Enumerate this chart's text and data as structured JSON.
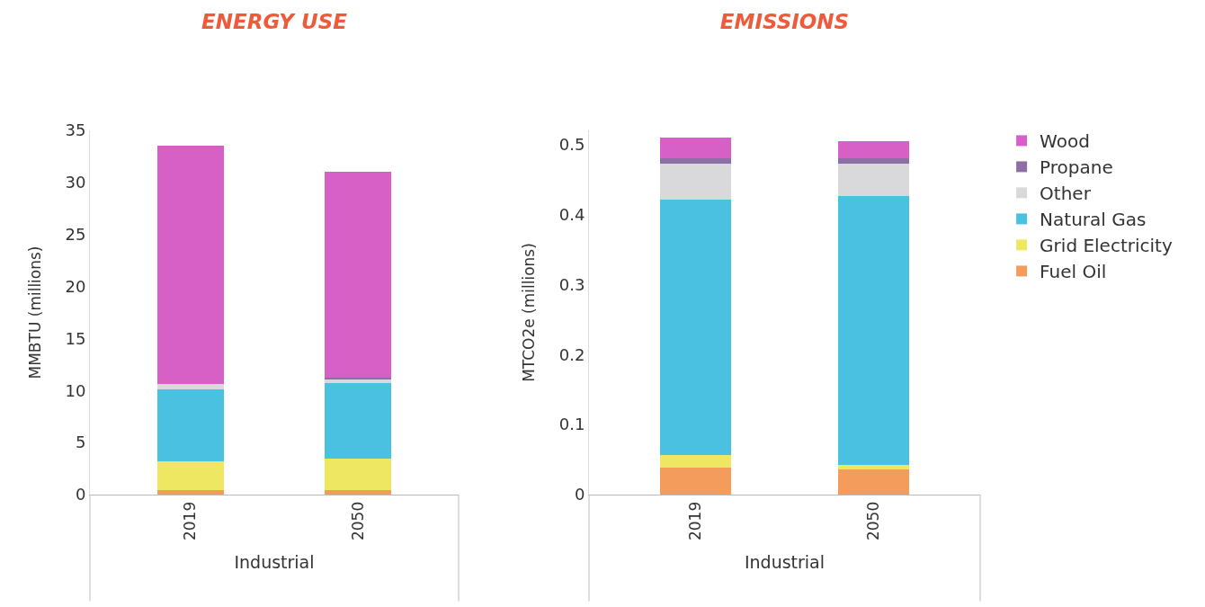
{
  "chart_data": [
    {
      "type": "bar",
      "title": "ENERGY USE",
      "xlabel": "Industrial",
      "ylabel": "MMBTU (millions)",
      "categories": [
        "2019",
        "2050"
      ],
      "stacked": true,
      "grid": false,
      "legend": false,
      "ylim": [
        0,
        35
      ],
      "yticks": [
        0,
        5,
        10,
        15,
        20,
        25,
        30,
        35
      ],
      "series": [
        {
          "color": "#f49c5c",
          "values": [
            0.4,
            0.4
          ]
        },
        {
          "color": "#ede762",
          "values": [
            2.8,
            3.1
          ]
        },
        {
          "color": "#4bc1e1",
          "values": [
            6.9,
            7.2
          ]
        },
        {
          "color": "#d9d9dc",
          "values": [
            0.5,
            0.4
          ]
        },
        {
          "color": "#8e6fa5",
          "values": [
            0,
            0.1
          ]
        },
        {
          "color": "#d660c6",
          "values": [
            22.9,
            19.8
          ]
        }
      ]
    },
    {
      "type": "bar",
      "title": "EMISSIONS",
      "xlabel": "Industrial",
      "ylabel": "MTCO2e (millions)",
      "categories": [
        "2019",
        "2050"
      ],
      "stacked": true,
      "grid": false,
      "legend": "right",
      "ylim": [
        0,
        0.52
      ],
      "yticks": [
        0,
        0.1,
        0.2,
        0.3,
        0.4,
        0.5
      ],
      "series": [
        {
          "name": "Fuel Oil",
          "color": "#f49c5c",
          "values": [
            0.038,
            0.036
          ]
        },
        {
          "name": "Grid Electricity",
          "color": "#ede762",
          "values": [
            0.018,
            0.006
          ]
        },
        {
          "name": "Natural Gas",
          "color": "#4bc1e1",
          "values": [
            0.365,
            0.384
          ]
        },
        {
          "name": "Other",
          "color": "#d9d9dc",
          "values": [
            0.052,
            0.046
          ]
        },
        {
          "name": "Propane",
          "color": "#8e6fa5",
          "values": [
            0.007,
            0.008
          ]
        },
        {
          "name": "Wood",
          "color": "#d660c6",
          "values": [
            0.03,
            0.025
          ]
        }
      ]
    }
  ]
}
